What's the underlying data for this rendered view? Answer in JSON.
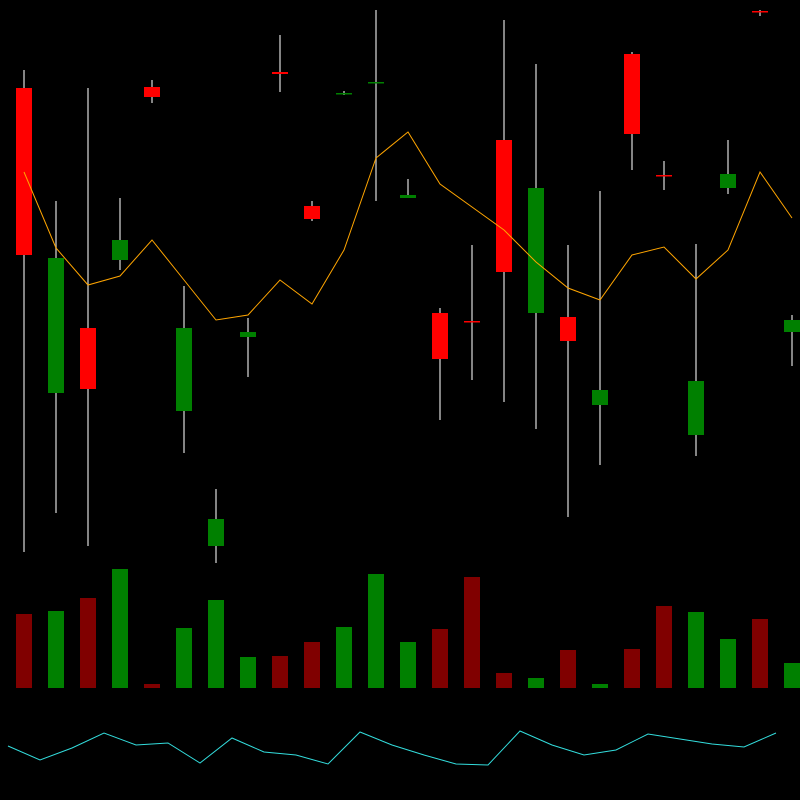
{
  "chart_data": {
    "type": "candlestick",
    "open": [
      712,
      407,
      472,
      540,
      713,
      389,
      254,
      463,
      728,
      594,
      706,
      717,
      602,
      487,
      479,
      660,
      487,
      483,
      395,
      746,
      625,
      365,
      612,
      789,
      468
    ],
    "high": [
      730,
      599,
      712,
      602,
      720,
      514,
      311,
      482,
      765,
      599,
      709,
      790,
      621,
      492,
      555,
      780,
      736,
      555,
      609,
      748,
      639,
      556,
      660,
      790,
      485
    ],
    "low": [
      248,
      287,
      254,
      530,
      697,
      347,
      237,
      423,
      708,
      579,
      705,
      599,
      602,
      380,
      420,
      398,
      371,
      283,
      335,
      630,
      610,
      344,
      606,
      784,
      434
    ],
    "close": [
      545,
      542,
      411,
      560,
      703,
      472,
      281,
      468,
      726,
      581,
      707,
      718,
      605,
      441,
      478,
      528,
      612,
      459,
      410,
      666,
      624,
      419,
      626,
      788,
      480
    ],
    "ylim": [
      0,
      800
    ],
    "up_color": "#008000",
    "down_color": "#ff0000",
    "wick_color": "#b0b0b0",
    "moving_average": {
      "color": "#ffa500",
      "values": [
        628,
        552,
        515,
        524,
        560,
        520,
        480,
        485,
        520,
        496,
        550,
        642,
        668,
        616,
        593,
        570,
        538,
        512,
        500,
        545,
        553,
        521,
        550,
        628,
        582
      ]
    },
    "volume": {
      "ylim": [
        0,
        120
      ],
      "up_color": "#008000",
      "down_color": "#800000",
      "values": [
        74,
        77,
        90,
        119,
        4,
        60,
        88,
        31,
        32,
        46,
        61,
        114,
        46,
        59,
        111,
        15,
        10,
        38,
        4,
        39,
        82,
        76,
        49,
        69,
        25
      ]
    },
    "indicator": {
      "ylim": [
        0,
        100
      ],
      "color": "#33dddd",
      "values": [
        54,
        40,
        52,
        67,
        55,
        57,
        37,
        62,
        48,
        45,
        36,
        68,
        55,
        45,
        36,
        35,
        69,
        55,
        45,
        50,
        66,
        61,
        56,
        53,
        67
      ]
    }
  }
}
